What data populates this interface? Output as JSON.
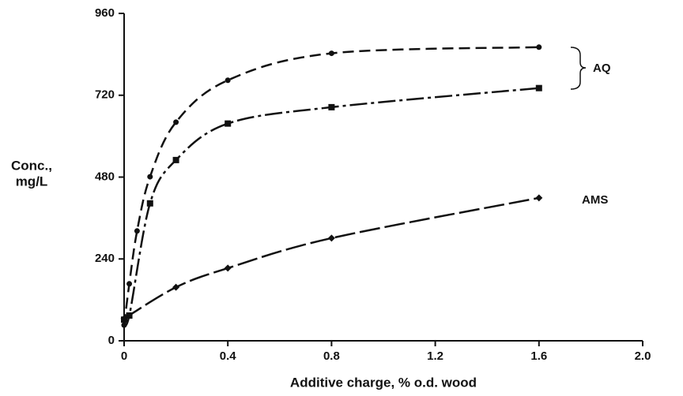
{
  "chart_data": {
    "type": "line",
    "y_label": [
      "Conc.,",
      "mg/L"
    ],
    "x_label": "Additive charge, % o.d. wood",
    "xlim": [
      0,
      2
    ],
    "ylim": [
      0,
      960
    ],
    "xticks": [
      0,
      0.4,
      0.8,
      1.2,
      1.6,
      {
        "value": 2,
        "label": "2.0"
      }
    ],
    "yticks": [
      0,
      240,
      480,
      720,
      960
    ],
    "series": [
      {
        "color": "#111111",
        "marker": "circle",
        "dash": "14 7",
        "x": [
          0,
          0.02,
          0.05,
          0.1,
          0.2,
          0.4,
          0.8,
          1.6
        ],
        "values": [
          46,
          167,
          322,
          481,
          641,
          764,
          843,
          861
        ]
      },
      {
        "color": "#111111",
        "marker": "square",
        "dash": "22 5 4 5",
        "x": [
          0,
          0.02,
          0.1,
          0.2,
          0.4,
          0.8,
          1.6
        ],
        "values": [
          62,
          74,
          403,
          530,
          637,
          685,
          741
        ]
      },
      {
        "color": "#111111",
        "marker": "diamond",
        "dash": "26 6",
        "x": [
          0,
          0.2,
          0.4,
          0.8,
          1.6
        ],
        "values": [
          65,
          157,
          213,
          301,
          419
        ]
      }
    ],
    "annotations": [
      "AQ",
      "AMS"
    ]
  }
}
